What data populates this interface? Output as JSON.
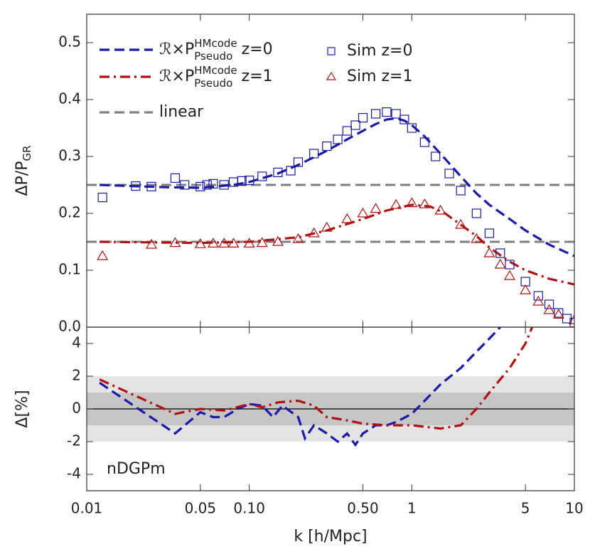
{
  "chart_data": [
    {
      "type": "line",
      "ylabel": "ΔP/P",
      "ylabel_sub": "GR",
      "xscale": "log",
      "xlim": [
        0.01,
        10
      ],
      "ylim": [
        0,
        0.55
      ],
      "yticks": [
        {
          "value": 0,
          "label": "0.0"
        },
        0.1,
        0.2,
        0.3,
        0.4,
        0.5
      ],
      "series": [
        {
          "name": "ℛ×P",
          "name_sup": "HMcode",
          "name_sub": "Pseudo",
          "name_suffix": "z=0",
          "color": "#1a1aa8",
          "style": "dashed",
          "x": [
            0.012,
            0.03,
            0.05,
            0.08,
            0.1,
            0.15,
            0.2,
            0.3,
            0.4,
            0.5,
            0.6,
            0.7,
            0.8,
            0.9,
            1,
            1.2,
            1.5,
            2,
            2.5,
            3,
            4,
            5,
            7,
            10
          ],
          "values": [
            0.25,
            0.246,
            0.245,
            0.25,
            0.255,
            0.27,
            0.285,
            0.31,
            0.33,
            0.345,
            0.357,
            0.365,
            0.367,
            0.363,
            0.355,
            0.335,
            0.305,
            0.265,
            0.235,
            0.215,
            0.19,
            0.17,
            0.145,
            0.125
          ]
        },
        {
          "name": "ℛ×P",
          "name_sup": "HMcode",
          "name_sub": "Pseudo",
          "name_suffix": "z=1",
          "color": "#b01010",
          "style": "dashdot",
          "x": [
            0.012,
            0.05,
            0.1,
            0.2,
            0.3,
            0.5,
            0.7,
            1,
            1.3,
            1.6,
            2,
            2.5,
            3,
            4,
            5,
            7,
            10
          ],
          "values": [
            0.15,
            0.148,
            0.15,
            0.158,
            0.17,
            0.19,
            0.205,
            0.215,
            0.212,
            0.2,
            0.18,
            0.16,
            0.14,
            0.115,
            0.1,
            0.085,
            0.075
          ]
        },
        {
          "name": "Sim z=0",
          "color": "#1a1aa8",
          "marker": "square",
          "x": [
            0.0125,
            0.02,
            0.025,
            0.035,
            0.04,
            0.05,
            0.055,
            0.06,
            0.07,
            0.08,
            0.09,
            0.1,
            0.12,
            0.15,
            0.18,
            0.2,
            0.25,
            0.3,
            0.35,
            0.4,
            0.45,
            0.5,
            0.6,
            0.7,
            0.8,
            0.9,
            1,
            1.2,
            1.4,
            1.7,
            2,
            2.5,
            3,
            3.5,
            4,
            5,
            6,
            7,
            8,
            9,
            10
          ],
          "values": [
            0.228,
            0.248,
            0.247,
            0.262,
            0.25,
            0.247,
            0.25,
            0.252,
            0.25,
            0.255,
            0.257,
            0.258,
            0.265,
            0.272,
            0.275,
            0.29,
            0.305,
            0.318,
            0.33,
            0.345,
            0.355,
            0.368,
            0.375,
            0.378,
            0.375,
            0.365,
            0.35,
            0.325,
            0.3,
            0.27,
            0.24,
            0.2,
            0.165,
            0.13,
            0.11,
            0.08,
            0.055,
            0.04,
            0.025,
            0.015,
            0.008
          ]
        },
        {
          "name": "Sim z=1",
          "color": "#b01010",
          "marker": "triangle",
          "x": [
            0.0125,
            0.025,
            0.035,
            0.05,
            0.06,
            0.07,
            0.08,
            0.1,
            0.12,
            0.15,
            0.2,
            0.25,
            0.3,
            0.4,
            0.5,
            0.6,
            0.8,
            1,
            1.2,
            1.5,
            2,
            2.5,
            3,
            3.5,
            4,
            5,
            6,
            7,
            8,
            10
          ],
          "values": [
            0.125,
            0.145,
            0.148,
            0.146,
            0.147,
            0.147,
            0.147,
            0.147,
            0.148,
            0.15,
            0.155,
            0.165,
            0.175,
            0.19,
            0.2,
            0.208,
            0.215,
            0.218,
            0.216,
            0.205,
            0.18,
            0.155,
            0.13,
            0.11,
            0.09,
            0.065,
            0.045,
            0.03,
            0.022,
            0.012
          ]
        }
      ],
      "reference_lines": {
        "name": "linear",
        "color": "#808080",
        "values": [
          0.25,
          0.15
        ]
      }
    },
    {
      "type": "line",
      "ylabel": "Δ[%]",
      "xlabel": "k [h/Mpc]",
      "annotation": "nDGPm",
      "xscale": "log",
      "xlim": [
        0.01,
        10
      ],
      "ylim": [
        -5,
        5
      ],
      "xticks": [
        0.01,
        0.05,
        {
          "value": 0.1,
          "label": "0.10"
        },
        {
          "value": 0.5,
          "label": "0.50"
        },
        1,
        5,
        10
      ],
      "yticks": [
        -4,
        -2,
        0,
        2,
        4
      ],
      "bands": [
        2,
        1
      ],
      "series": [
        {
          "color": "#1a1aa8",
          "style": "dashed",
          "x": [
            0.012,
            0.035,
            0.05,
            0.06,
            0.07,
            0.085,
            0.1,
            0.12,
            0.14,
            0.16,
            0.2,
            0.22,
            0.25,
            0.3,
            0.35,
            0.4,
            0.45,
            0.5,
            0.6,
            0.7,
            0.8,
            1,
            1.2,
            1.5,
            2,
            2.5,
            3,
            3.5
          ],
          "values": [
            1.6,
            -1.5,
            -0.2,
            -0.5,
            -0.5,
            0,
            0.3,
            0.2,
            -0.5,
            0.2,
            -0.5,
            -1.8,
            -1,
            -1.5,
            -2,
            -1.5,
            -2.2,
            -1.5,
            -1,
            -1,
            -0.8,
            -0.3,
            0.5,
            1.5,
            2.5,
            3.5,
            4.3,
            5
          ]
        },
        {
          "color": "#b01010",
          "style": "dashdot",
          "x": [
            0.012,
            0.035,
            0.05,
            0.07,
            0.1,
            0.12,
            0.15,
            0.2,
            0.25,
            0.3,
            0.4,
            0.5,
            0.7,
            1,
            1.5,
            2,
            2.5,
            3,
            4,
            5,
            5.5
          ],
          "values": [
            1.8,
            -0.3,
            0,
            -0.1,
            0.3,
            0.1,
            0.4,
            0.5,
            0.2,
            -0.5,
            -0.7,
            -0.9,
            -1,
            -1,
            -1.2,
            -1,
            0,
            1,
            2.5,
            4,
            5
          ]
        }
      ]
    }
  ]
}
